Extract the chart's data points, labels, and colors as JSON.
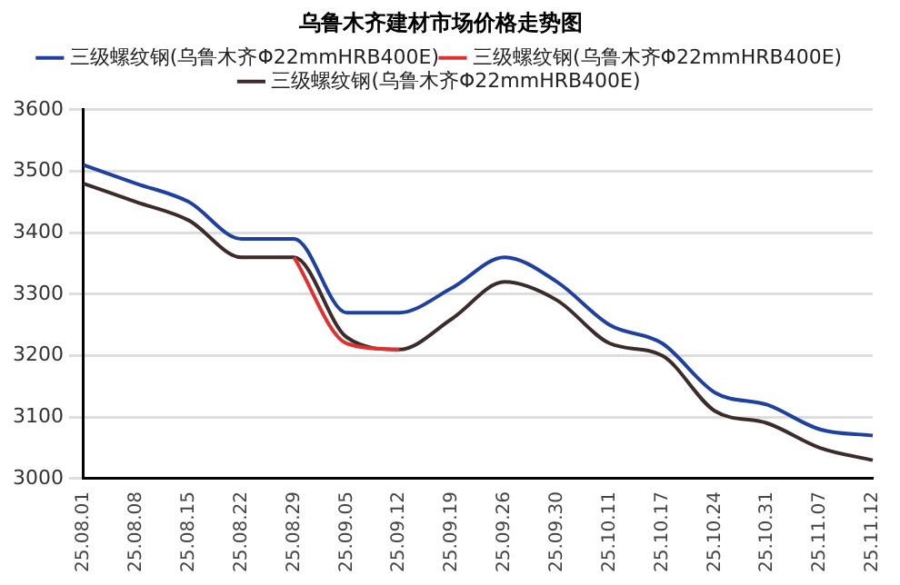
{
  "chart_data": {
    "type": "line",
    "title": "乌鲁木齐建材市场价格走势图",
    "categories": [
      "25.08.01",
      "25.08.08",
      "25.08.15",
      "25.08.22",
      "25.08.29",
      "25.09.05",
      "25.09.12",
      "25.09.19",
      "25.09.26",
      "25.09.30",
      "25.10.11",
      "25.10.17",
      "25.10.24",
      "25.10.31",
      "25.11.07",
      "25.11.12"
    ],
    "series": [
      {
        "name": "三级螺纹钢(乌鲁木齐Φ22mmHRB400E)",
        "color": "#3d2b2b",
        "values": [
          3480,
          3450,
          3420,
          3360,
          3360,
          3230,
          3210,
          3260,
          3320,
          3290,
          3220,
          3200,
          3110,
          3090,
          3050,
          3030
        ]
      },
      {
        "name": "三级螺纹钢(乌鲁木齐Φ22mmHRB400E)",
        "color": "#e03030",
        "values": [
          null,
          null,
          null,
          null,
          3360,
          3220,
          3210,
          null,
          null,
          null,
          null,
          null,
          null,
          null,
          null,
          null
        ]
      },
      {
        "name": "三级螺纹钢(乌鲁木齐Φ22mmHRB400E)",
        "color": "#2040a0",
        "values": [
          3510,
          3480,
          3450,
          3390,
          3390,
          3270,
          3270,
          3310,
          3360,
          3320,
          3250,
          3220,
          3140,
          3120,
          3080,
          3070
        ]
      }
    ],
    "ylim": [
      3000,
      3600
    ],
    "yticks": [
      3000,
      3100,
      3200,
      3300,
      3400,
      3500,
      3600
    ],
    "grid": "y",
    "legend": "top",
    "marker": "none",
    "line_style": "solid"
  }
}
